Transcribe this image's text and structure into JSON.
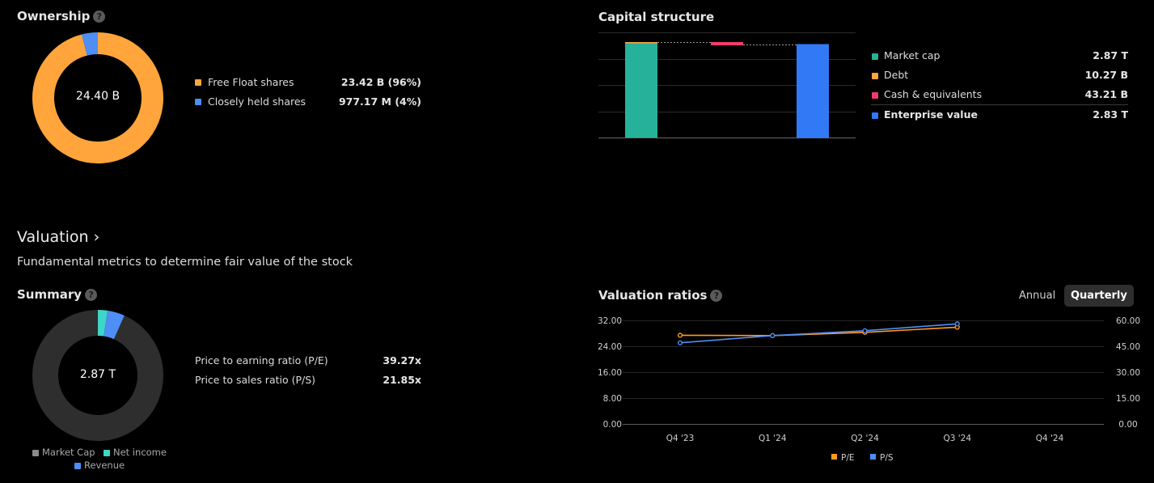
{
  "ownership": {
    "title": "Ownership",
    "help": "?",
    "center": "24.40 B",
    "items": [
      {
        "label": "Free Float shares",
        "value": "23.42 B (96%)",
        "color": "#ffa53b",
        "share": 0.96
      },
      {
        "label": "Closely held shares",
        "value": "977.17 M (4%)",
        "color": "#4f8ef5",
        "share": 0.04
      }
    ]
  },
  "capital_structure": {
    "title": "Capital structure",
    "items": [
      {
        "label": "Market cap",
        "value": "2.87 T",
        "color": "#26b29a"
      },
      {
        "label": "Debt",
        "value": "10.27 B",
        "color": "#ffa53b"
      },
      {
        "label": "Cash & equivalents",
        "value": "43.21 B",
        "color": "#f23b6c"
      },
      {
        "label": "Enterprise value",
        "value": "2.83 T",
        "color": "#3179f5"
      }
    ]
  },
  "valuation": {
    "title": "Valuation ›",
    "subtitle": "Fundamental metrics to determine fair value of the stock"
  },
  "summary": {
    "title": "Summary",
    "help": "?",
    "center": "2.87 T",
    "metrics": [
      {
        "label": "Price to earning ratio (P/E)",
        "value": "39.27x"
      },
      {
        "label": "Price to sales ratio (P/S)",
        "value": "21.85x"
      }
    ],
    "legend": [
      {
        "label": "Market Cap",
        "color": "#8c8c8c"
      },
      {
        "label": "Net income",
        "color": "#3ed6c9"
      },
      {
        "label": "Revenue",
        "color": "#4f8ef5"
      }
    ]
  },
  "valuation_ratios": {
    "title": "Valuation ratios",
    "help": "?",
    "toggle": {
      "annual": "Annual",
      "quarterly": "Quarterly"
    }
  },
  "chart_data": [
    {
      "type": "pie",
      "title": "Ownership",
      "categories": [
        "Free Float shares",
        "Closely held shares"
      ],
      "values": [
        23.42,
        0.97717
      ],
      "units": "B"
    },
    {
      "type": "bar",
      "title": "Capital structure",
      "categories": [
        "Market cap",
        "Debt",
        "Cash & equivalents",
        "Enterprise value"
      ],
      "values": [
        2870,
        10.27,
        -43.21,
        2830
      ],
      "units": "B"
    },
    {
      "type": "pie",
      "title": "Summary",
      "categories": [
        "Market Cap",
        "Net income",
        "Revenue"
      ],
      "values": [
        2870,
        73,
        131
      ],
      "units": "B"
    },
    {
      "type": "line",
      "title": "Valuation ratios",
      "categories": [
        "Q4 '23",
        "Q1 '24",
        "Q2 '24",
        "Q3 '24",
        "Q4 '24"
      ],
      "series": [
        {
          "name": "P/E",
          "axis": "left",
          "color": "#ff9a1f",
          "values": [
            27.4,
            27.3,
            28.3,
            29.9,
            null
          ]
        },
        {
          "name": "P/S",
          "axis": "right",
          "color": "#4f8ef5",
          "values": [
            47.0,
            51.2,
            54.0,
            58.0,
            null
          ]
        }
      ],
      "left_axis": {
        "ticks": [
          "32.00",
          "24.00",
          "16.00",
          "8.00",
          "0.00"
        ],
        "ylim": [
          0,
          32
        ]
      },
      "right_axis": {
        "ticks": [
          "60.00",
          "45.00",
          "30.00",
          "15.00",
          "0.00"
        ],
        "ylim": [
          0,
          60
        ]
      }
    }
  ]
}
